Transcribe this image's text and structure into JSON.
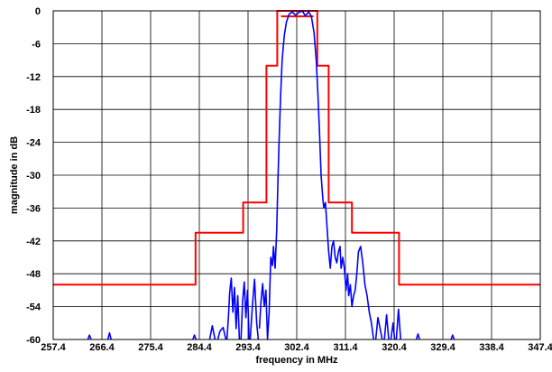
{
  "chart_data": {
    "type": "line",
    "xlabel": "frequency in MHz",
    "ylabel": "magnitude in dB",
    "xlim": [
      257.4,
      347.4
    ],
    "ylim": [
      -60,
      0
    ],
    "xticks": [
      257.4,
      266.4,
      275.4,
      284.4,
      293.4,
      302.4,
      311.4,
      320.4,
      329.4,
      338.4,
      347.4
    ],
    "yticks": [
      0,
      -6,
      -12,
      -18,
      -24,
      -30,
      -36,
      -42,
      -48,
      -54,
      -60
    ],
    "grid": true,
    "colors": {
      "mask": "#ff0000",
      "spectrum": "#0000ff"
    },
    "series": [
      {
        "role": "upper mask",
        "color": "#ff0000",
        "points": [
          [
            257.4,
            -50
          ],
          [
            283.7,
            -50
          ],
          [
            283.7,
            -40.5
          ],
          [
            292.5,
            -40.5
          ],
          [
            292.5,
            -35
          ],
          [
            296.8,
            -35
          ],
          [
            296.8,
            -10
          ],
          [
            298.8,
            -10
          ],
          [
            298.8,
            0
          ],
          [
            306.2,
            0
          ],
          [
            306.2,
            -10
          ],
          [
            308.3,
            -10
          ],
          [
            308.3,
            -35
          ],
          [
            312.6,
            -35
          ],
          [
            312.6,
            -40.5
          ],
          [
            321.3,
            -40.5
          ],
          [
            321.3,
            -50
          ],
          [
            347.4,
            -50
          ]
        ]
      },
      {
        "role": "inner mask",
        "color": "#ff0000",
        "points": [
          [
            299.5,
            -1
          ],
          [
            305.5,
            -1
          ]
        ]
      },
      {
        "role": "spectrum",
        "color": "#0000ff",
        "segments": [
          [
            [
              263.8,
              -60
            ],
            [
              264.1,
              -59.2
            ],
            [
              264.4,
              -60
            ]
          ],
          [
            [
              267.5,
              -60
            ],
            [
              267.8,
              -58.8
            ],
            [
              268.1,
              -60
            ]
          ],
          [
            [
              283.2,
              -60
            ],
            [
              283.5,
              -59.2
            ],
            [
              283.8,
              -60
            ]
          ],
          [
            [
              286.3,
              -60
            ],
            [
              286.8,
              -57.5
            ],
            [
              287.3,
              -60
            ]
          ],
          [
            [
              287.8,
              -60
            ],
            [
              288.2,
              -58.5
            ],
            [
              288.8,
              -57.8
            ],
            [
              289.3,
              -60
            ]
          ],
          [
            [
              289.5,
              -60
            ],
            [
              289.8,
              -55.5
            ],
            [
              290.0,
              -51.5
            ],
            [
              290.3,
              -48.8
            ],
            [
              290.6,
              -55
            ],
            [
              290.9,
              -50.5
            ],
            [
              291.2,
              -58
            ],
            [
              291.5,
              -52
            ],
            [
              291.8,
              -60
            ]
          ],
          [
            [
              292.1,
              -60
            ],
            [
              292.4,
              -53
            ],
            [
              292.7,
              -49.5
            ],
            [
              293.0,
              -56
            ],
            [
              293.3,
              -51
            ],
            [
              293.6,
              -60
            ]
          ],
          [
            [
              293.8,
              -60
            ],
            [
              294.2,
              -54
            ],
            [
              294.6,
              -49
            ],
            [
              295.0,
              -57
            ],
            [
              295.3,
              -60
            ]
          ],
          [
            [
              295.5,
              -58
            ],
            [
              295.8,
              -53
            ],
            [
              296.1,
              -49.8
            ],
            [
              296.4,
              -54
            ],
            [
              296.7,
              -51
            ],
            [
              297.0,
              -60
            ],
            [
              297.3,
              -55
            ],
            [
              297.6,
              -45
            ],
            [
              297.9,
              -46.5
            ],
            [
              298.1,
              -43
            ],
            [
              298.4,
              -47
            ],
            [
              298.7,
              -40
            ],
            [
              298.9,
              -32
            ],
            [
              299.1,
              -25
            ],
            [
              299.4,
              -16
            ],
            [
              299.7,
              -9
            ],
            [
              300.1,
              -4.5
            ],
            [
              300.5,
              -2
            ],
            [
              301.0,
              -0.6
            ],
            [
              301.6,
              -0.2
            ],
            [
              302.2,
              -0.8
            ],
            [
              302.8,
              -0.3
            ],
            [
              303.4,
              0
            ],
            [
              304.0,
              -0.9
            ],
            [
              304.6,
              -0.2
            ],
            [
              305.1,
              -1
            ],
            [
              305.6,
              -4
            ],
            [
              306.0,
              -9
            ],
            [
              306.3,
              -15
            ],
            [
              306.6,
              -22
            ],
            [
              306.9,
              -30
            ],
            [
              307.2,
              -34
            ],
            [
              307.4,
              -36
            ],
            [
              307.7,
              -35
            ],
            [
              307.9,
              -38
            ],
            [
              308.1,
              -41
            ],
            [
              308.3,
              -44
            ],
            [
              308.6,
              -47
            ],
            [
              308.9,
              -43
            ],
            [
              309.2,
              -42
            ],
            [
              309.5,
              -45
            ],
            [
              309.8,
              -46
            ],
            [
              310.1,
              -44
            ],
            [
              310.4,
              -43
            ],
            [
              310.6,
              -47
            ],
            [
              310.9,
              -45
            ],
            [
              311.2,
              -47
            ],
            [
              311.5,
              -51
            ],
            [
              311.8,
              -48
            ],
            [
              312.0,
              -52
            ],
            [
              312.3,
              -50
            ],
            [
              312.6,
              -54
            ],
            [
              312.9,
              -52
            ],
            [
              313.2,
              -51
            ],
            [
              313.5,
              -48
            ],
            [
              313.8,
              -44
            ],
            [
              314.2,
              -43
            ],
            [
              314.6,
              -46
            ],
            [
              315.0,
              -50
            ],
            [
              315.4,
              -52
            ],
            [
              315.8,
              -55
            ],
            [
              316.2,
              -57
            ],
            [
              316.6,
              -60
            ]
          ],
          [
            [
              317.0,
              -60
            ],
            [
              317.4,
              -56
            ],
            [
              317.8,
              -58
            ],
            [
              318.2,
              -60
            ]
          ],
          [
            [
              318.6,
              -60
            ],
            [
              319.0,
              -55.5
            ],
            [
              319.4,
              -60
            ]
          ],
          [
            [
              319.8,
              -60
            ],
            [
              320.2,
              -57
            ],
            [
              320.5,
              -60
            ]
          ],
          [
            [
              320.8,
              -60
            ],
            [
              321.2,
              -54.5
            ],
            [
              321.6,
              -60
            ]
          ],
          [
            [
              324.5,
              -60
            ],
            [
              324.8,
              -59
            ],
            [
              325.1,
              -60
            ]
          ],
          [
            [
              330.9,
              -60
            ],
            [
              331.2,
              -59.2
            ],
            [
              331.5,
              -60
            ]
          ]
        ]
      }
    ]
  }
}
